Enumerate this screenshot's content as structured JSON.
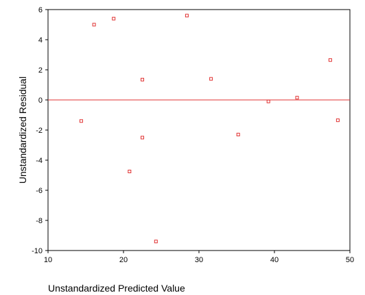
{
  "chart_data": {
    "type": "scatter",
    "title": "",
    "xlabel": "Unstandardized Predicted Value",
    "ylabel": "Unstandardized Residual",
    "xlim": [
      10,
      50
    ],
    "ylim": [
      -10,
      6
    ],
    "xticks": [
      10,
      20,
      30,
      40,
      50
    ],
    "yticks": [
      -10,
      -8,
      -6,
      -4,
      -2,
      0,
      2,
      4,
      6
    ],
    "reference_line": {
      "y": 0,
      "color": "#e03030"
    },
    "grid": false,
    "legend": "none",
    "marker": {
      "shape": "square-hollow",
      "color": "#e03030"
    },
    "points": [
      {
        "x": 14.4,
        "y": -1.4
      },
      {
        "x": 16.1,
        "y": 5.0
      },
      {
        "x": 18.7,
        "y": 5.4
      },
      {
        "x": 20.8,
        "y": -4.75
      },
      {
        "x": 22.5,
        "y": 1.35
      },
      {
        "x": 22.5,
        "y": -2.5
      },
      {
        "x": 24.3,
        "y": -9.4
      },
      {
        "x": 28.4,
        "y": 5.6
      },
      {
        "x": 31.6,
        "y": 1.4
      },
      {
        "x": 35.2,
        "y": -2.3
      },
      {
        "x": 39.2,
        "y": -0.1
      },
      {
        "x": 43.0,
        "y": 0.15
      },
      {
        "x": 47.4,
        "y": 2.65
      },
      {
        "x": 48.4,
        "y": -1.35
      }
    ]
  }
}
